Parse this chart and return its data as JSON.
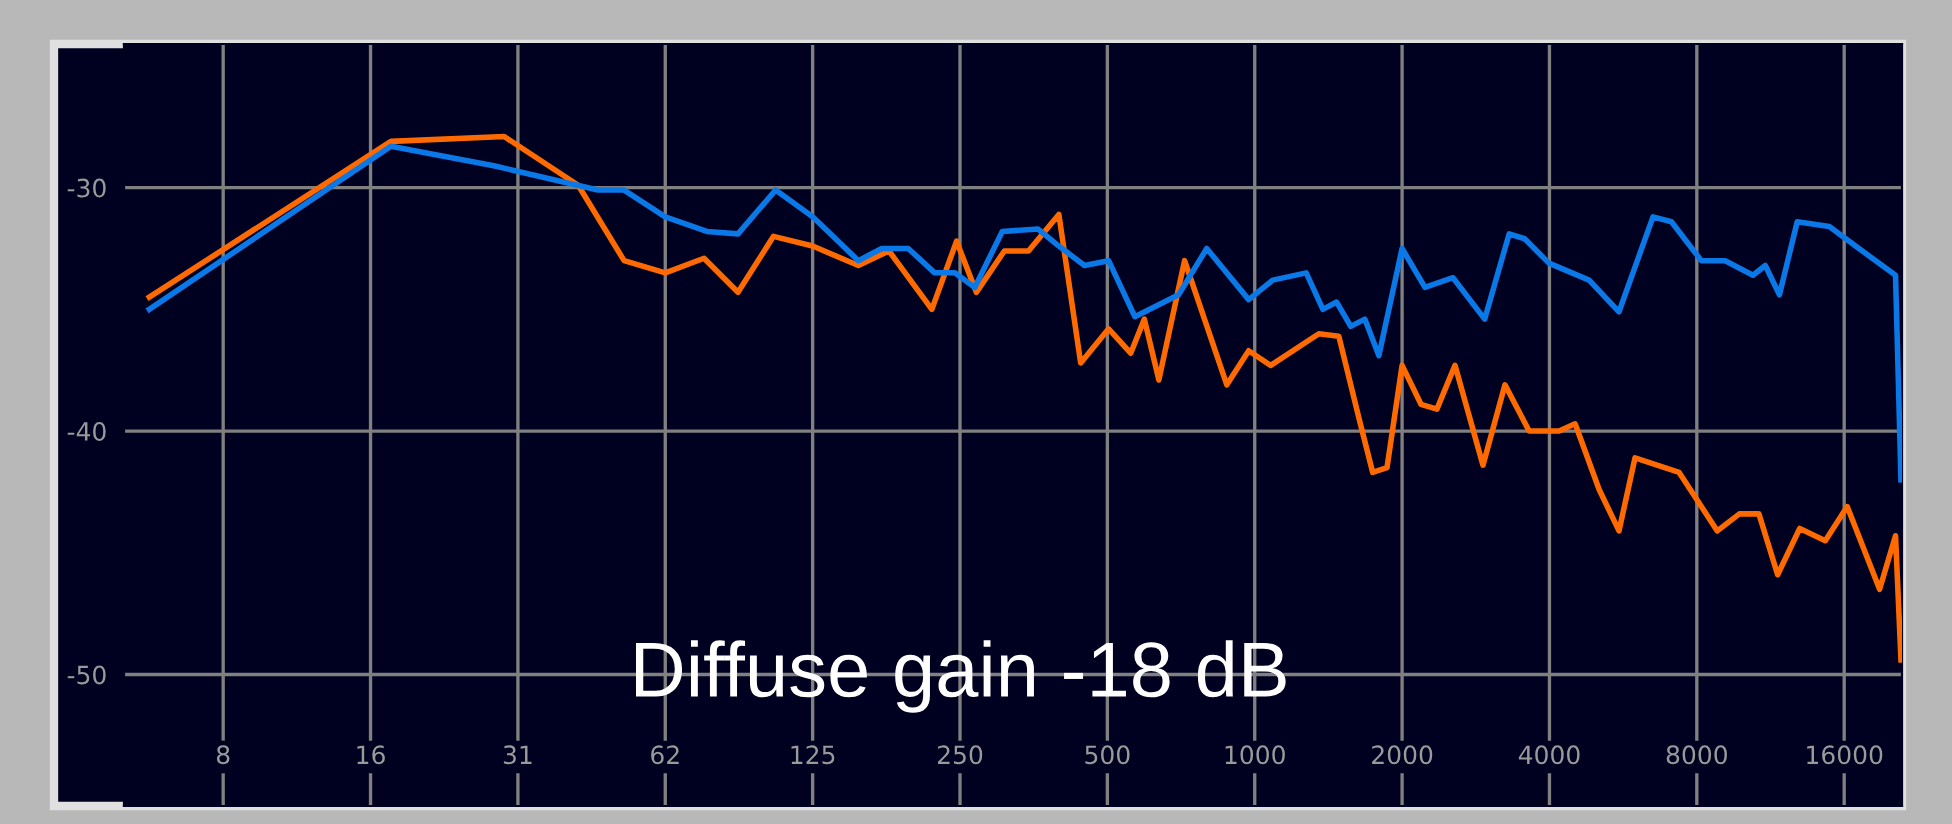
{
  "chart_data": {
    "type": "line",
    "log": "x",
    "grid": true,
    "legend": false,
    "marker": "none",
    "line_style": "solid",
    "xlim": [
      4.9,
      21000
    ],
    "ylim": [
      -55.4,
      -24.1
    ],
    "xticks": [
      {
        "value": 7.8125,
        "label": "8"
      },
      {
        "value": 15.625,
        "label": "16"
      },
      {
        "value": 31.25,
        "label": "31"
      },
      {
        "value": 62.5,
        "label": "62"
      },
      125,
      250,
      500,
      1000,
      2000,
      4000,
      8000,
      16000
    ],
    "yticks": [
      -30,
      -40,
      -50
    ],
    "annotations": [
      "Diffuse gain -18 dB"
    ],
    "series": [
      {
        "color": "#ff6a00",
        "x": [
          5.52,
          17.2,
          29.3,
          41.5,
          51.5,
          62.5,
          75,
          88,
          104,
          125,
          155,
          179,
          219,
          246,
          270,
          308,
          345,
          398,
          441,
          503,
          558,
          595,
          637,
          719,
          877,
          972,
          1078,
          1352,
          1485,
          1634,
          1742,
          1863,
          2000,
          2186,
          2356,
          2565,
          2926,
          3245,
          3636,
          4185,
          4513,
          5053,
          5548,
          5982,
          7362,
          8808,
          9774,
          10713,
          11700,
          12980,
          14640,
          16230,
          18900,
          20370,
          20900
        ],
        "values": [
          -34.5,
          -28.1,
          -27.9,
          -29.9,
          -33.0,
          -33.5,
          -32.9,
          -34.3,
          -32.0,
          -32.4,
          -33.2,
          -32.6,
          -35.0,
          -32.2,
          -34.3,
          -32.6,
          -32.6,
          -31.1,
          -37.2,
          -35.8,
          -36.8,
          -35.4,
          -37.9,
          -33.0,
          -38.1,
          -36.7,
          -37.3,
          -36.0,
          -36.1,
          -39.5,
          -41.7,
          -41.5,
          -37.3,
          -38.9,
          -39.1,
          -37.3,
          -41.4,
          -38.1,
          -40.0,
          -40.0,
          -39.7,
          -42.4,
          -44.1,
          -41.1,
          -41.7,
          -44.1,
          -43.4,
          -43.4,
          -45.9,
          -44.0,
          -44.5,
          -43.1,
          -46.5,
          -44.3,
          -49.4
        ]
      },
      {
        "color": "#0a78e6",
        "x": [
          5.52,
          17.2,
          27.9,
          45.5,
          51.5,
          62.5,
          76,
          88,
          105,
          125,
          155,
          173,
          196,
          222,
          244,
          268,
          305,
          361,
          398,
          449,
          503,
          569,
          699,
          798,
          972,
          1088,
          1274,
          1378,
          1470,
          1571,
          1678,
          1793,
          2000,
          2227,
          2541,
          2950,
          3309,
          3560,
          3990,
          4820,
          5548,
          6510,
          7100,
          8170,
          9140,
          10420,
          11040,
          11800,
          12830,
          14920,
          17150,
          20370,
          20900
        ],
        "values": [
          -35.0,
          -28.3,
          -29.1,
          -30.1,
          -30.1,
          -31.2,
          -31.8,
          -31.9,
          -30.1,
          -31.2,
          -33.0,
          -32.5,
          -32.5,
          -33.5,
          -33.5,
          -34.1,
          -31.8,
          -31.7,
          -32.4,
          -33.2,
          -33.0,
          -35.3,
          -34.4,
          -32.5,
          -34.6,
          -33.8,
          -33.5,
          -35.0,
          -34.7,
          -35.7,
          -35.4,
          -36.9,
          -32.5,
          -34.1,
          -33.7,
          -35.4,
          -31.9,
          -32.1,
          -33.1,
          -33.8,
          -35.1,
          -31.2,
          -31.4,
          -33.0,
          -33.0,
          -33.6,
          -33.2,
          -34.4,
          -31.4,
          -31.6,
          -32.5,
          -33.6,
          -42.0
        ]
      }
    ]
  }
}
